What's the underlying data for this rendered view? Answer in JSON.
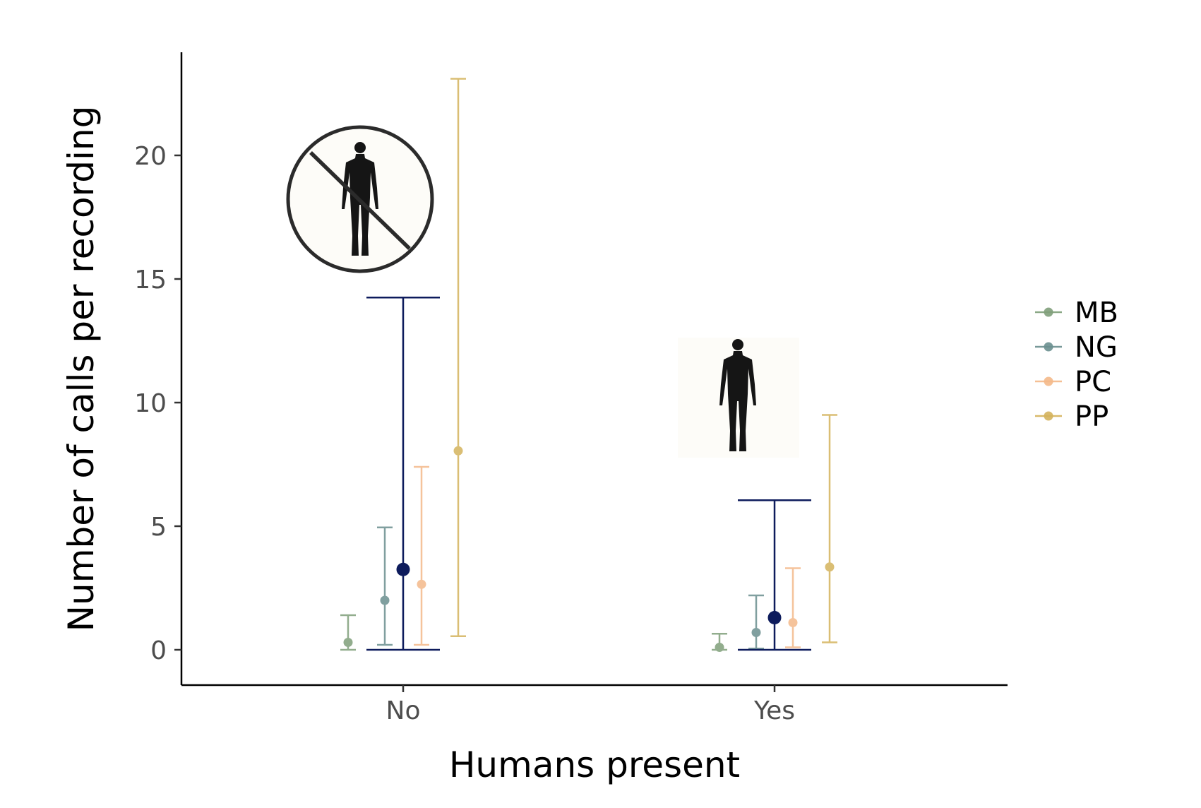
{
  "chart_data": {
    "type": "scatter",
    "xlabel": "Humans present",
    "ylabel": "Number of calls per recording",
    "categories": [
      "No",
      "Yes"
    ],
    "yticks": [
      0,
      5,
      10,
      15,
      20
    ],
    "ylim": [
      -1.1,
      24.0
    ],
    "grid": false,
    "legend_position": "right",
    "series": [
      {
        "name": "MB",
        "color": "#7f9f7a",
        "values": [
          0.3,
          0.1
        ],
        "lower": [
          0.0,
          0.0
        ],
        "upper": [
          1.4,
          0.65
        ]
      },
      {
        "name": "NG",
        "color": "#6a8f8f",
        "values": [
          2.0,
          0.7
        ],
        "lower": [
          0.2,
          0.05
        ],
        "upper": [
          4.95,
          2.2
        ]
      },
      {
        "name": "PC",
        "color": "#f4b98a",
        "values": [
          2.65,
          1.1
        ],
        "lower": [
          0.2,
          0.1
        ],
        "upper": [
          7.4,
          3.3
        ]
      },
      {
        "name": "PP",
        "color": "#d4b35c",
        "values": [
          8.05,
          3.35
        ],
        "lower": [
          0.55,
          0.3
        ],
        "upper": [
          23.1,
          9.5
        ]
      }
    ],
    "overall": {
      "color": "#0d1b5c",
      "values": [
        3.25,
        1.3
      ],
      "lower": [
        0.0,
        0.0
      ],
      "upper": [
        14.25,
        6.05
      ]
    },
    "icons": {
      "no": "no-human-icon",
      "yes": "human-icon"
    }
  }
}
